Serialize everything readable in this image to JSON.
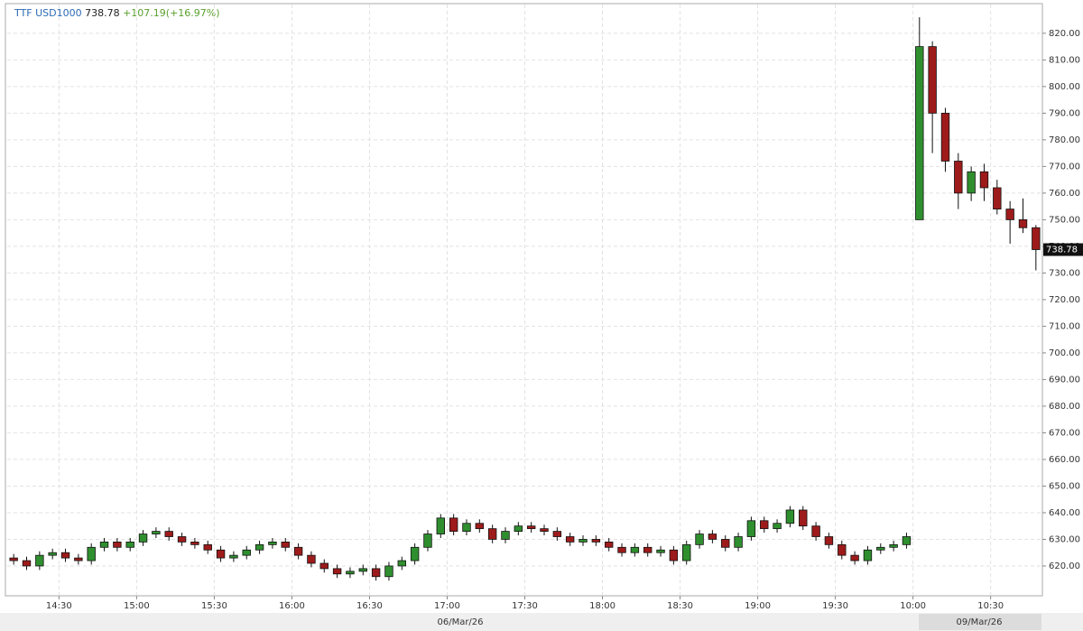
{
  "chart_data": {
    "type": "candlestick",
    "instrument": "TTF USD1000",
    "change_label": "+107.19(+16.97%)",
    "dates": [
      "06/Mar/26",
      "09/Mar/26"
    ],
    "categories": [
      null,
      null,
      null,
      null,
      "14:30",
      null,
      null,
      null,
      null,
      null,
      "15:00",
      null,
      null,
      null,
      null,
      null,
      "15:30",
      null,
      null,
      null,
      null,
      null,
      "16:00",
      null,
      null,
      null,
      null,
      null,
      "16:30",
      null,
      null,
      null,
      null,
      null,
      "17:00",
      null,
      null,
      null,
      null,
      null,
      "17:30",
      null,
      null,
      null,
      null,
      null,
      "18:00",
      null,
      null,
      null,
      null,
      null,
      "18:30",
      null,
      null,
      null,
      null,
      null,
      "19:00",
      null,
      null,
      null,
      null,
      null,
      "19:30",
      null,
      null,
      null,
      null,
      null,
      "10:00",
      null,
      null,
      null,
      null,
      null,
      "10:30",
      null,
      null,
      null
    ],
    "open": [
      623,
      622,
      620,
      624,
      625,
      623,
      622,
      627,
      629,
      627,
      629,
      632,
      633,
      631,
      629,
      628,
      626,
      623,
      624,
      626,
      628,
      629,
      627,
      624,
      621,
      619,
      617,
      618,
      619,
      616,
      620,
      622,
      627,
      632,
      638,
      633,
      636,
      634,
      630,
      633,
      635,
      634,
      633,
      631,
      629,
      630,
      629,
      627,
      625,
      627,
      625,
      626,
      622,
      628,
      632,
      630,
      627,
      631,
      637,
      634,
      636,
      641,
      635,
      631,
      628,
      624,
      622,
      626,
      627,
      628,
      750,
      815,
      790,
      772,
      760,
      768,
      762,
      754,
      750,
      747
    ],
    "high": [
      624.5,
      623.5,
      625.5,
      626.5,
      626.5,
      624.5,
      628.5,
      630.5,
      630.5,
      630.5,
      633.5,
      634.5,
      634.5,
      632.5,
      630.5,
      629.5,
      627.5,
      625.5,
      627.5,
      629.5,
      630.5,
      630.5,
      628.5,
      625.5,
      622.5,
      620.5,
      619.5,
      620.5,
      620.5,
      621.5,
      623.5,
      628.5,
      633.5,
      639.5,
      639.5,
      637.5,
      637.5,
      635.5,
      634.5,
      636.5,
      636.5,
      635.5,
      634.5,
      632.5,
      631.5,
      631.5,
      630.5,
      628.5,
      628.5,
      628.5,
      627.5,
      627.5,
      629.5,
      633.5,
      633.5,
      631.5,
      632.5,
      638.5,
      638.5,
      637.5,
      642.5,
      642.5,
      636.5,
      632.5,
      629.5,
      625.5,
      627.5,
      628.5,
      629.5,
      632.5,
      826,
      817,
      792,
      775,
      770,
      771,
      765,
      757,
      758,
      748
    ],
    "low": [
      620.5,
      618.5,
      618.5,
      622.5,
      621.5,
      620.5,
      620.5,
      625.5,
      625.5,
      625.5,
      627.5,
      630.5,
      629.5,
      627.5,
      626.5,
      624.5,
      621.5,
      621.5,
      622.5,
      624.5,
      626.5,
      625.5,
      622.5,
      619.5,
      617.5,
      615.5,
      615.5,
      616.5,
      614.5,
      614.5,
      618.5,
      620.5,
      625.5,
      630.5,
      631.5,
      631.5,
      632.5,
      628.5,
      628.5,
      631.5,
      632.5,
      631.5,
      629.5,
      627.5,
      627.5,
      627.5,
      625.5,
      623.5,
      623.5,
      623.5,
      623.5,
      620.5,
      620.5,
      626.5,
      628.5,
      625.5,
      625.5,
      629.5,
      632.5,
      632.5,
      634.5,
      633.5,
      629.5,
      626.5,
      622.5,
      620.5,
      620.5,
      624.5,
      625.5,
      626.5,
      750,
      775,
      768,
      754,
      757,
      757,
      752,
      741,
      745,
      731
    ],
    "close": [
      622,
      620,
      624,
      625,
      623,
      622,
      627,
      629,
      627,
      629,
      632,
      633,
      631,
      629,
      628,
      626,
      623,
      624,
      626,
      628,
      629,
      627,
      624,
      621,
      619,
      617,
      618,
      619,
      616,
      620,
      622,
      627,
      632,
      638,
      633,
      636,
      634,
      630,
      633,
      635,
      634,
      633,
      631,
      629,
      630,
      629,
      627,
      625,
      627,
      625,
      626,
      622,
      628,
      632,
      630,
      627,
      631,
      637,
      634,
      636,
      641,
      635,
      631,
      628,
      624,
      622,
      626,
      627,
      628,
      631,
      815,
      790,
      772,
      760,
      768,
      762,
      754,
      750,
      747,
      738.78
    ],
    "up_color": "#2f8f2f",
    "down_color": "#9e1b1b",
    "ylim": [
      608.8,
      830.8
    ],
    "yticks": [
      {
        "value": 620,
        "label": "620.00"
      },
      {
        "value": 630,
        "label": "630.00"
      },
      {
        "value": 640,
        "label": "640.00"
      },
      {
        "value": 650,
        "label": "650.00"
      },
      {
        "value": 660,
        "label": "660.00"
      },
      {
        "value": 670,
        "label": "670.00"
      },
      {
        "value": 680,
        "label": "680.00"
      },
      {
        "value": 690,
        "label": "690.00"
      },
      {
        "value": 700,
        "label": "700.00"
      },
      {
        "value": 710,
        "label": "710.00"
      },
      {
        "value": 720,
        "label": "720.00"
      },
      {
        "value": 730,
        "label": "730.00"
      },
      {
        "value": 740,
        "label": "740.00"
      },
      {
        "value": 750,
        "label": "750.00"
      },
      {
        "value": 760,
        "label": "760.00"
      },
      {
        "value": 770,
        "label": "770.00"
      },
      {
        "value": 780,
        "label": "780.00"
      },
      {
        "value": 790,
        "label": "790.00"
      },
      {
        "value": 800,
        "label": "800.00"
      },
      {
        "value": 810,
        "label": "810.00"
      },
      {
        "value": 820,
        "label": "820.00"
      }
    ],
    "grid": true
  }
}
